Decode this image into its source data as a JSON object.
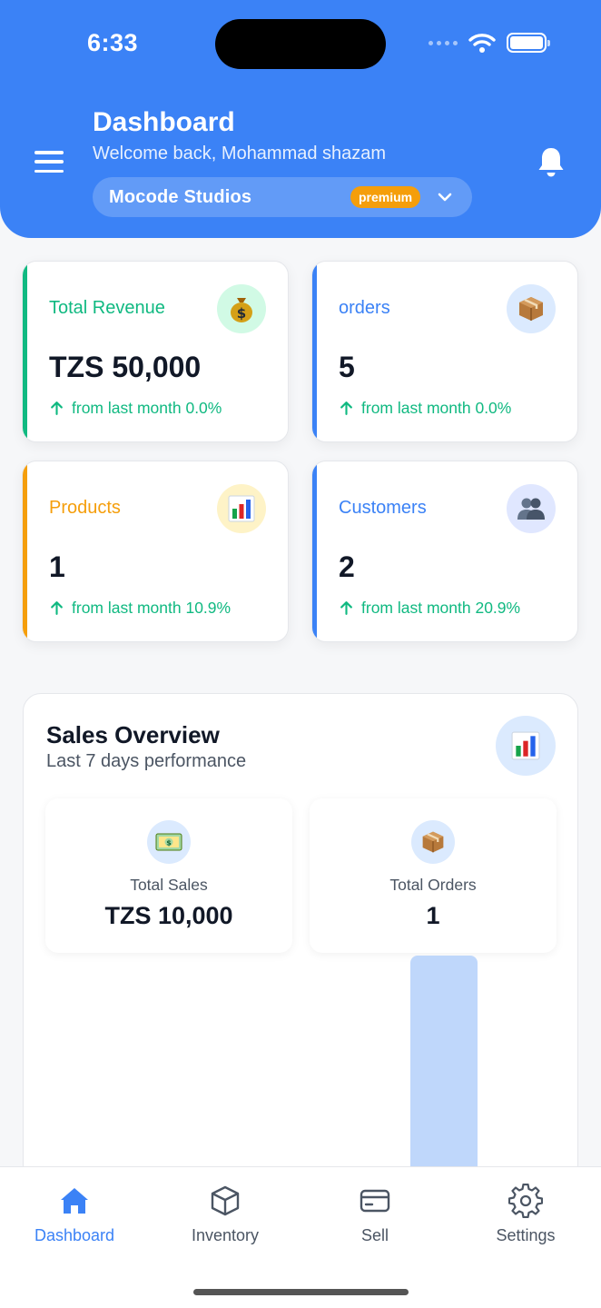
{
  "status_bar": {
    "time": "6:33"
  },
  "header": {
    "title": "Dashboard",
    "subtitle": "Welcome back, Mohammad shazam",
    "org_name": "Mocode Studios",
    "plan_badge": "premium"
  },
  "stats": [
    {
      "label": "Total Revenue",
      "value": "TZS 50,000",
      "trend": "from last month 0.0%",
      "icon": "money-bag-icon",
      "accent": "#10b981"
    },
    {
      "label": "orders",
      "value": "5",
      "trend": "from last month 0.0%",
      "icon": "package-icon",
      "accent": "#3b82f6"
    },
    {
      "label": "Products",
      "value": "1",
      "trend": "from last month 10.9%",
      "icon": "bar-chart-icon",
      "accent": "#f59e0b"
    },
    {
      "label": "Customers",
      "value": "2",
      "trend": "from last month 20.9%",
      "icon": "people-icon",
      "accent": "#3b82f6"
    }
  ],
  "sales_overview": {
    "title": "Sales Overview",
    "subtitle": "Last 7 days performance",
    "total_sales_label": "Total Sales",
    "total_sales_value": "TZS 10,000",
    "total_orders_label": "Total Orders",
    "total_orders_value": "1"
  },
  "bottom_nav": [
    {
      "label": "Dashboard",
      "icon": "home-icon",
      "active": true
    },
    {
      "label": "Inventory",
      "icon": "cube-icon",
      "active": false
    },
    {
      "label": "Sell",
      "icon": "card-icon",
      "active": false
    },
    {
      "label": "Settings",
      "icon": "gear-icon",
      "active": false
    }
  ],
  "colors": {
    "primary": "#3b82f6",
    "success": "#10b981",
    "warning": "#f59e0b"
  }
}
